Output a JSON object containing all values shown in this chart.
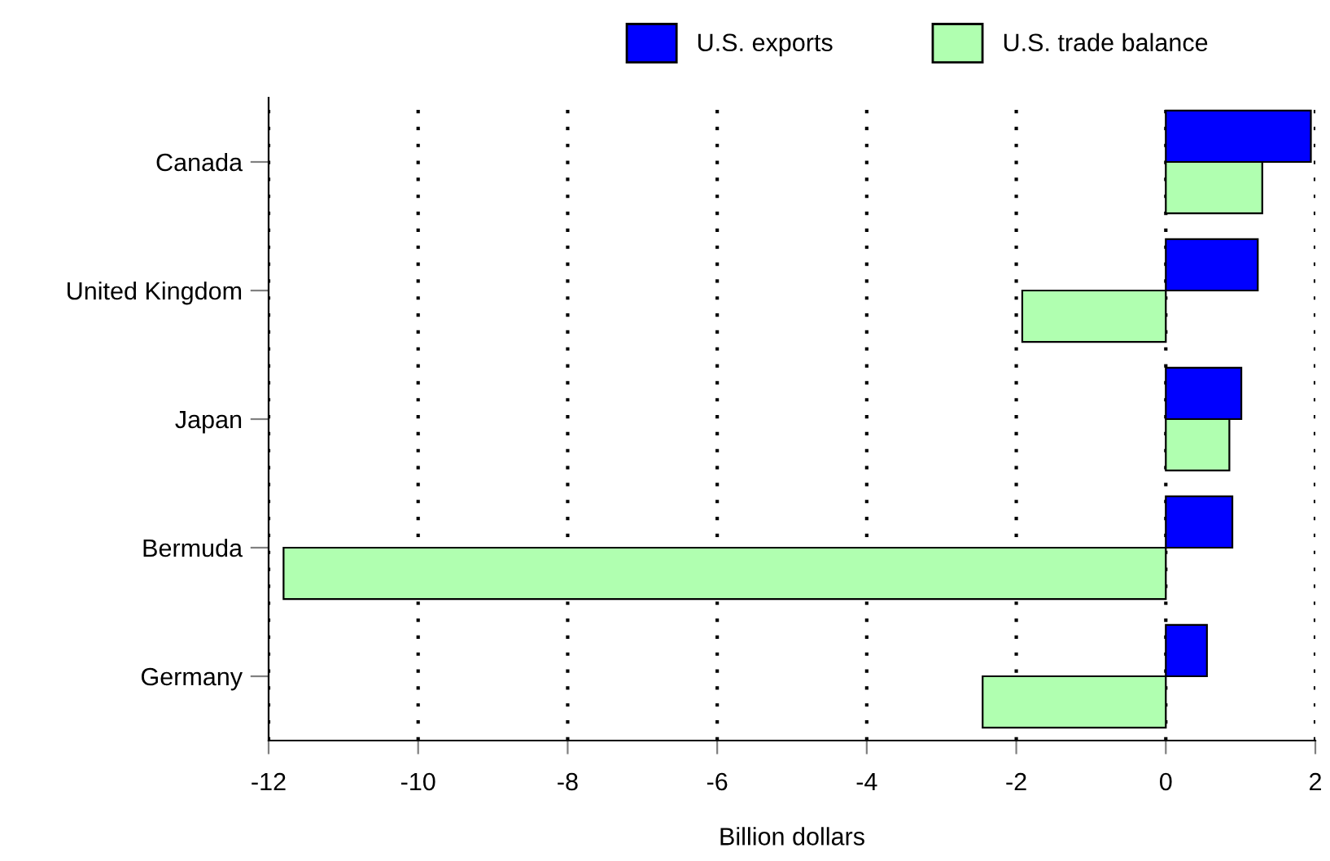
{
  "chart_data": {
    "type": "bar",
    "orientation": "horizontal",
    "xlabel": "Billion dollars",
    "categories": [
      "Canada",
      "United Kingdom",
      "Japan",
      "Bermuda",
      "Germany"
    ],
    "series": [
      {
        "name": "U.S. exports",
        "color": "#0000ff",
        "values": [
          1.94,
          1.23,
          1.01,
          0.89,
          0.55
        ]
      },
      {
        "name": "U.S. trade balance",
        "color": "#b0ffb0",
        "values": [
          1.29,
          -1.92,
          0.85,
          -11.8,
          -2.45
        ]
      }
    ],
    "xlim": [
      -12,
      2
    ],
    "xticks": [
      -12,
      -10,
      -8,
      -6,
      -4,
      -2,
      0,
      2
    ],
    "grid": "x",
    "legend": "top"
  }
}
